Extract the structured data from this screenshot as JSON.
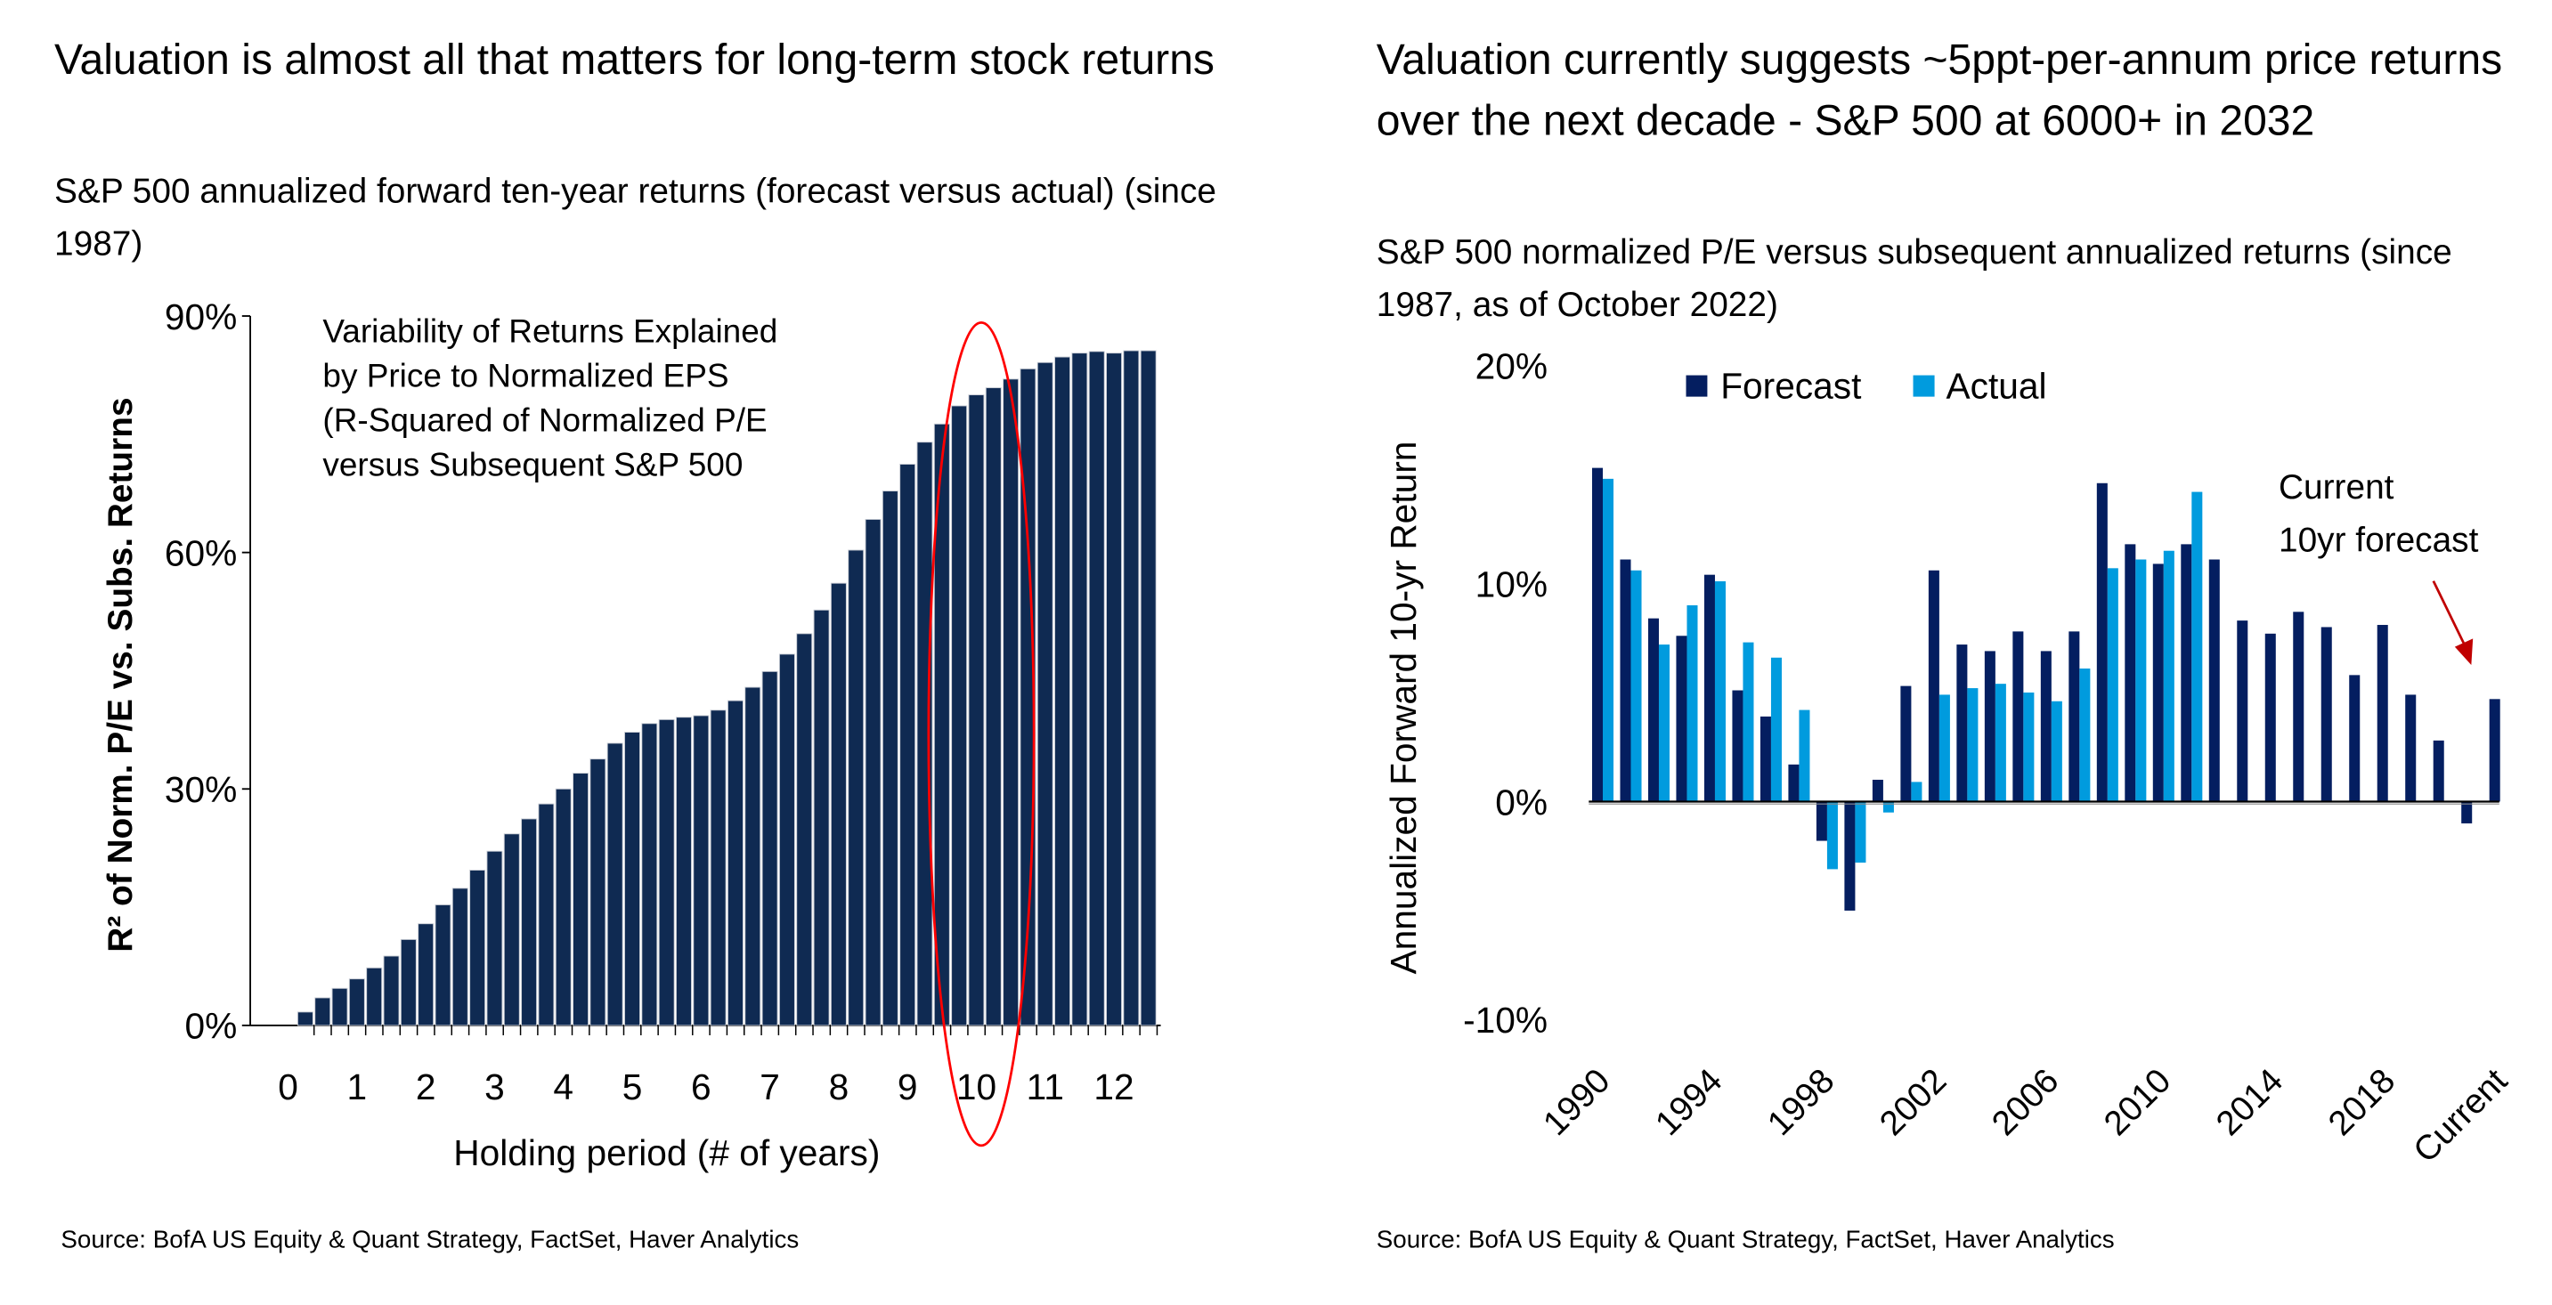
{
  "left": {
    "title": "Valuation is almost all that matters for long-term stock returns",
    "subtitle": "S&P 500 annualized forward ten-year returns (forecast versus actual) (since 1987)",
    "source": "Source: BofA US Equity & Quant Strategy, FactSet, Haver Analytics"
  },
  "right": {
    "title": "Valuation currently suggests ~5ppt-per-annum price returns over the next decade - S&P 500 at 6000+ in 2032",
    "subtitle": "S&P 500 normalized P/E versus subsequent annualized returns (since 1987, as of October 2022)",
    "source": "Source: BofA US Equity & Quant Strategy, FactSet, Haver Analytics"
  },
  "chart_data": [
    {
      "type": "bar",
      "xlabel": "Holding period (# of years)",
      "ylabel": "R² of Norm. P/E vs. Subs.  Returns",
      "ylim": [
        0,
        90
      ],
      "yticks": [
        "0%",
        "30%",
        "60%",
        "90%"
      ],
      "xticks": [
        "0",
        "1",
        "2",
        "3",
        "4",
        "5",
        "6",
        "7",
        "8",
        "9",
        "10",
        "11",
        "12"
      ],
      "x": [
        0.25,
        0.5,
        0.75,
        1,
        1.25,
        1.5,
        1.75,
        2,
        2.25,
        2.5,
        2.75,
        3,
        3.25,
        3.5,
        3.75,
        4,
        4.25,
        4.5,
        4.75,
        5,
        5.25,
        5.5,
        5.75,
        6,
        6.25,
        6.5,
        6.75,
        7,
        7.25,
        7.5,
        7.75,
        8,
        8.25,
        8.5,
        8.75,
        9,
        9.25,
        9.5,
        9.75,
        10,
        10.25,
        10.5,
        10.75,
        11,
        11.25,
        11.5,
        11.75,
        12,
        12.25,
        12.5
      ],
      "values": [
        1.7,
        3.5,
        4.7,
        5.9,
        7.3,
        8.8,
        10.9,
        12.9,
        15.3,
        17.4,
        19.7,
        22.1,
        24.3,
        26.2,
        28.1,
        30.0,
        32.0,
        33.8,
        35.8,
        37.2,
        38.3,
        38.8,
        39.1,
        39.3,
        40.0,
        41.2,
        42.9,
        44.9,
        47.1,
        49.7,
        52.7,
        56.1,
        60.3,
        64.2,
        67.8,
        71.2,
        74.0,
        76.3,
        78.6,
        80.0,
        80.9,
        82.0,
        83.3,
        84.1,
        84.8,
        85.3,
        85.5,
        85.3,
        85.6,
        85.6
      ],
      "annotation": "Variability of Returns Explained by Price to Normalized EPS (R-Squared of Normalized P/E versus Subsequent S&P 500",
      "highlight": "red ellipse around 10-year holding period",
      "color": "#0f2a52",
      "highlight_color": "#ff0000",
      "grid": false
    },
    {
      "type": "bar",
      "ylabel": "Annualized  Forward 10-yr Return",
      "ylim": [
        -10,
        20
      ],
      "yticks": [
        "-10%",
        "0%",
        "10%",
        "20%"
      ],
      "categories": [
        "1990",
        "1991",
        "1992",
        "1993",
        "1994",
        "1995",
        "1996",
        "1997",
        "1998",
        "1999",
        "2000",
        "2001",
        "2002",
        "2003",
        "2004",
        "2005",
        "2006",
        "2007",
        "2008",
        "2009",
        "2010",
        "2011",
        "2012",
        "2013",
        "2014",
        "2015",
        "2016",
        "2017",
        "2018",
        "2019",
        "2020",
        "2021",
        "Current"
      ],
      "xtick_labels": [
        "1990",
        "1994",
        "1998",
        "2002",
        "2006",
        "2010",
        "2014",
        "2018",
        "Current"
      ],
      "series": [
        {
          "name": "Forecast",
          "color": "#041e60",
          "values": [
            15.3,
            11.1,
            8.4,
            7.6,
            10.4,
            5.1,
            3.9,
            1.7,
            -1.8,
            -5.0,
            1.0,
            5.3,
            10.6,
            7.2,
            6.9,
            7.8,
            6.9,
            7.8,
            14.6,
            11.8,
            10.9,
            11.8,
            11.1,
            8.3,
            7.7,
            8.7,
            8.0,
            5.8,
            8.1,
            4.9,
            2.8,
            -1.0,
            4.7
          ]
        },
        {
          "name": "Actual",
          "color": "#009bde",
          "values": [
            14.8,
            10.6,
            7.2,
            9.0,
            10.1,
            7.3,
            6.6,
            4.2,
            -3.1,
            -2.8,
            -0.5,
            0.9,
            4.9,
            5.2,
            5.4,
            5.0,
            4.6,
            6.1,
            10.7,
            11.1,
            11.5,
            14.2,
            null,
            null,
            null,
            null,
            null,
            null,
            null,
            null,
            null,
            null,
            null
          ]
        }
      ],
      "annotation": "Current 10yr forecast",
      "annotation_lines": [
        "Current",
        "10yr forecast"
      ],
      "arrow_color": "#c00000",
      "legend": "top",
      "grid": false
    }
  ]
}
